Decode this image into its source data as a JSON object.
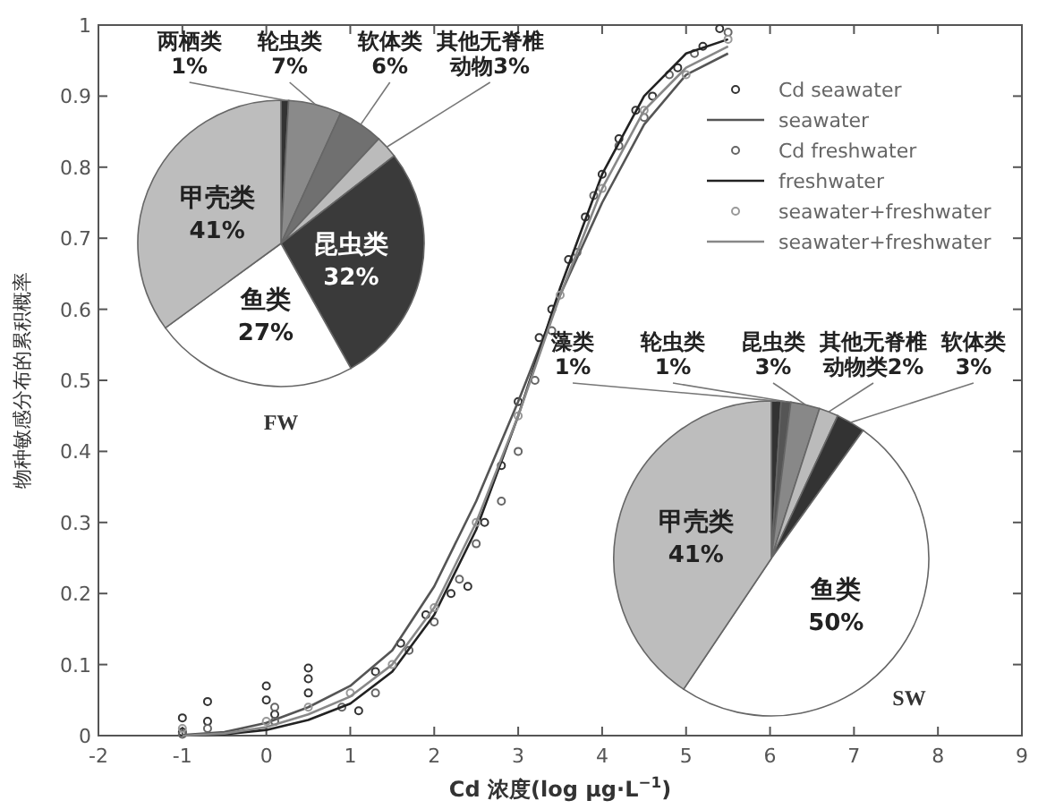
{
  "chart_data": [
    {
      "type": "line",
      "xlabel": "Cd 浓度(log μg·L$^{−1}$)",
      "ylabel": "物种敏感分布的累积概率",
      "xlim": [
        -2,
        9
      ],
      "ylim": [
        0,
        1
      ],
      "xticks": [
        -2,
        -1,
        0,
        1,
        2,
        3,
        4,
        5,
        6,
        7,
        8,
        9
      ],
      "yticks": [
        0,
        0.1,
        0.2,
        0.3,
        0.4,
        0.5,
        0.6,
        0.7,
        0.8,
        0.9,
        1
      ],
      "grid": false,
      "legend": "top right",
      "series": [
        {
          "name": "Cd seawater",
          "type": "scatter",
          "marker": "circle",
          "color": "#333333",
          "x": [
            -1,
            -1,
            -0.7,
            -0.7,
            0,
            0,
            0.1,
            0.5,
            0.5,
            0.5,
            1.1,
            1.3,
            1.6,
            1.9,
            2.2,
            2.4,
            2.6,
            2.8,
            3,
            3.25,
            3.4,
            3.6,
            3.8,
            4,
            4.2,
            4.4,
            4.6,
            4.9,
            5.2,
            5.4
          ],
          "values": [
            0.005,
            0.025,
            0.048,
            0.02,
            0.07,
            0.05,
            0.03,
            0.095,
            0.08,
            0.06,
            0.035,
            0.09,
            0.13,
            0.17,
            0.2,
            0.21,
            0.3,
            0.38,
            0.47,
            0.56,
            0.6,
            0.67,
            0.73,
            0.79,
            0.84,
            0.88,
            0.9,
            0.94,
            0.97,
            0.995
          ]
        },
        {
          "name": "seawater",
          "type": "line",
          "marker": "none",
          "line_style": "solid",
          "color": "#555555",
          "x": [
            -1,
            -0.5,
            0,
            0.5,
            1,
            1.5,
            2,
            2.5,
            3,
            3.5,
            4,
            4.5,
            5,
            5.5
          ],
          "values": [
            0.001,
            0.005,
            0.018,
            0.04,
            0.07,
            0.12,
            0.21,
            0.33,
            0.47,
            0.62,
            0.75,
            0.86,
            0.93,
            0.96
          ]
        },
        {
          "name": "Cd freshwater",
          "type": "scatter",
          "marker": "circle",
          "color": "#666666",
          "x": [
            -1,
            -0.7,
            0.1,
            0.1,
            0.9,
            1.3,
            1.7,
            2,
            2.3,
            2.5,
            2.8,
            3,
            3.2,
            3.4,
            3.7,
            3.9,
            4.2,
            4.5,
            4.8,
            5.1,
            5.5
          ],
          "values": [
            0.002,
            0.01,
            0.02,
            0.04,
            0.04,
            0.06,
            0.12,
            0.16,
            0.22,
            0.27,
            0.33,
            0.4,
            0.5,
            0.57,
            0.68,
            0.76,
            0.83,
            0.87,
            0.93,
            0.96,
            0.99
          ]
        },
        {
          "name": "freshwater",
          "type": "line",
          "marker": "none",
          "line_style": "solid",
          "color": "#222222",
          "x": [
            -1,
            -0.5,
            0,
            0.5,
            1,
            1.5,
            2,
            2.5,
            3,
            3.5,
            4,
            4.5,
            5,
            5.5
          ],
          "values": [
            0,
            0.002,
            0.008,
            0.022,
            0.045,
            0.09,
            0.17,
            0.29,
            0.45,
            0.63,
            0.79,
            0.9,
            0.96,
            0.98
          ]
        },
        {
          "name": "seawater+freshwater",
          "type": "scatter",
          "marker": "circle",
          "color": "#999999",
          "x": [
            -1,
            0,
            0.5,
            1,
            1.5,
            2,
            2.5,
            3,
            3.5,
            4,
            4.5,
            5,
            5.5
          ],
          "values": [
            0.01,
            0.02,
            0.04,
            0.06,
            0.1,
            0.18,
            0.3,
            0.45,
            0.62,
            0.77,
            0.88,
            0.93,
            0.98
          ]
        },
        {
          "name": "seawater+freshwater",
          "type": "line",
          "marker": "none",
          "line_style": "solid",
          "color": "#888888",
          "x": [
            -1,
            -0.5,
            0,
            0.5,
            1,
            1.5,
            2,
            2.5,
            3,
            3.5,
            4,
            4.5,
            5,
            5.5
          ],
          "values": [
            0,
            0.003,
            0.012,
            0.03,
            0.055,
            0.1,
            0.18,
            0.3,
            0.45,
            0.62,
            0.77,
            0.88,
            0.94,
            0.97
          ]
        }
      ]
    },
    {
      "type": "pie",
      "title": "FW",
      "categories": [
        "两栖类",
        "轮虫类",
        "软体类",
        "其他无脊椎动物",
        "昆虫类",
        "鱼类",
        "甲壳类"
      ],
      "values": [
        1,
        7,
        6,
        3,
        32,
        27,
        41
      ],
      "value_labels": [
        "1%",
        "7%",
        "6%",
        "3%",
        "32%",
        "27%",
        "41%"
      ],
      "colors": [
        "#333333",
        "#8a8a8a",
        "#707070",
        "#bbbbbb",
        "#3a3a3a",
        "#ffffff",
        "#bdbdbd"
      ]
    },
    {
      "type": "pie",
      "title": "SW",
      "categories": [
        "藻类",
        "轮虫类",
        "昆虫类",
        "其他无脊椎动物类",
        "软体类",
        "鱼类",
        "甲壳类"
      ],
      "values": [
        1,
        1,
        3,
        2,
        3,
        50,
        41
      ],
      "value_labels": [
        "1%",
        "1%",
        "3%",
        "2%",
        "3%",
        "50%",
        "41%"
      ],
      "colors": [
        "#333333",
        "#555555",
        "#888888",
        "#bbbbbb",
        "#333333",
        "#ffffff",
        "#bdbdbd"
      ]
    }
  ]
}
